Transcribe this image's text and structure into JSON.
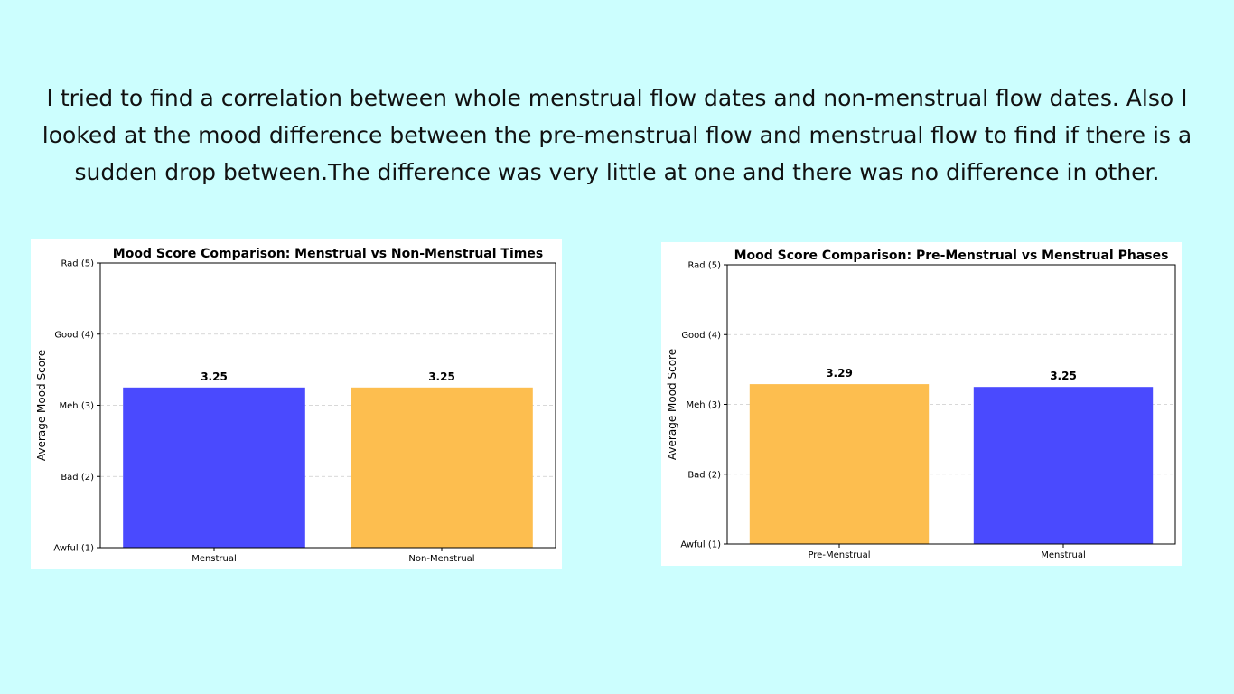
{
  "description": "I tried to find a correlation between whole menstrual flow dates and non-menstrual flow dates. Also I looked at the mood difference between the pre-menstrual flow and menstrual flow to find if there is a sudden drop between.The difference was very little at one and there was no difference in other.",
  "colors": {
    "background": "#ccfefe",
    "blue": "#4a4afe",
    "orange": "#fdbe4f"
  },
  "chart_data": [
    {
      "type": "bar",
      "title": "Mood Score Comparison: Menstrual vs Non-Menstrual Times",
      "xlabel": "",
      "ylabel": "Average Mood Score",
      "categories": [
        "Menstrual",
        "Non-Menstrual"
      ],
      "values": [
        3.25,
        3.25
      ],
      "value_labels": [
        "3.25",
        "3.25"
      ],
      "bar_colors": [
        "#4a4afe",
        "#fdbe4f"
      ],
      "ylim": [
        1,
        5
      ],
      "yticks": [
        1,
        2,
        3,
        4,
        5
      ],
      "ytick_labels": [
        "Awful (1)",
        "Bad (2)",
        "Meh (3)",
        "Good (4)",
        "Rad (5)"
      ],
      "grid": "horizontal dashed"
    },
    {
      "type": "bar",
      "title": "Mood Score Comparison: Pre-Menstrual vs Menstrual Phases",
      "xlabel": "",
      "ylabel": "Average Mood Score",
      "categories": [
        "Pre-Menstrual",
        "Menstrual"
      ],
      "values": [
        3.29,
        3.25
      ],
      "value_labels": [
        "3.29",
        "3.25"
      ],
      "bar_colors": [
        "#fdbe4f",
        "#4a4afe"
      ],
      "ylim": [
        1,
        5
      ],
      "yticks": [
        1,
        2,
        3,
        4,
        5
      ],
      "ytick_labels": [
        "Awful (1)",
        "Bad (2)",
        "Meh (3)",
        "Good (4)",
        "Rad (5)"
      ],
      "grid": "horizontal dashed"
    }
  ]
}
